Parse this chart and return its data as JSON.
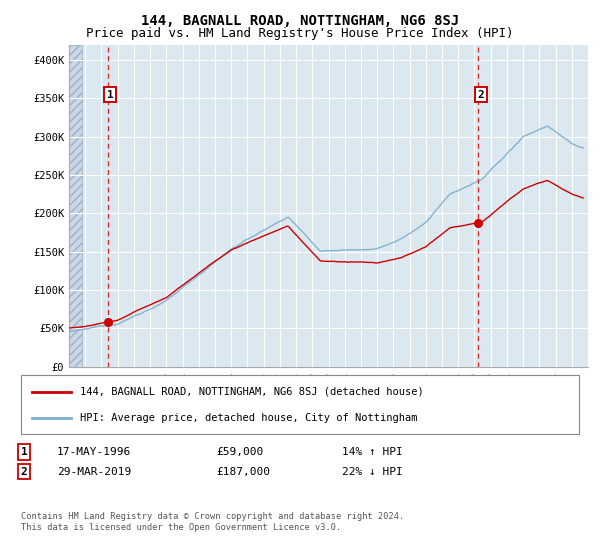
{
  "title": "144, BAGNALL ROAD, NOTTINGHAM, NG6 8SJ",
  "subtitle": "Price paid vs. HM Land Registry's House Price Index (HPI)",
  "legend_line1": "144, BAGNALL ROAD, NOTTINGHAM, NG6 8SJ (detached house)",
  "legend_line2": "HPI: Average price, detached house, City of Nottingham",
  "annotation1_label": "1",
  "annotation1_date": "17-MAY-1996",
  "annotation1_price": "£59,000",
  "annotation1_hpi": "14% ↑ HPI",
  "annotation2_label": "2",
  "annotation2_date": "29-MAR-2019",
  "annotation2_price": "£187,000",
  "annotation2_hpi": "22% ↓ HPI",
  "footer": "Contains HM Land Registry data © Crown copyright and database right 2024.\nThis data is licensed under the Open Government Licence v3.0.",
  "ylim": [
    0,
    420000
  ],
  "xlim_year": [
    1994,
    2026
  ],
  "sale1_year": 1996.38,
  "sale1_price": 59000,
  "sale2_year": 2019.24,
  "sale2_price": 187000,
  "red_line_color": "#cc0000",
  "blue_line_color": "#7aadcf",
  "bg_plot_color": "#dce8f0",
  "grid_color": "#ffffff",
  "dashed_line_color": "#cc0000",
  "title_fontsize": 10,
  "subtitle_fontsize": 9,
  "tick_fontsize": 7.5,
  "ylabel_ticks": [
    0,
    50000,
    100000,
    150000,
    200000,
    250000,
    300000,
    350000,
    400000
  ],
  "ylabel_labels": [
    "£0",
    "£50K",
    "£100K",
    "£150K",
    "£200K",
    "£250K",
    "£300K",
    "£350K",
    "£400K"
  ]
}
